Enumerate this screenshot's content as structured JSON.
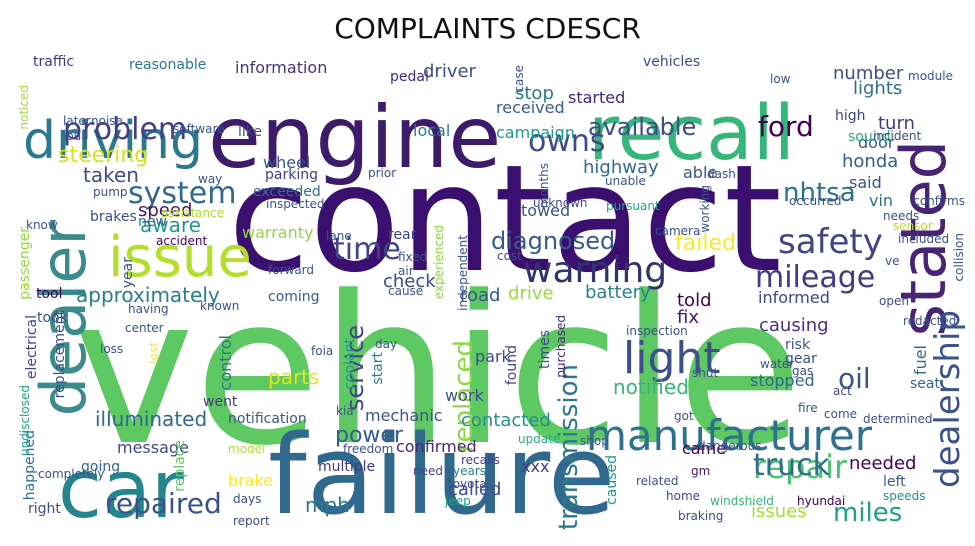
{
  "title": "COMPLAINTS CDESCR",
  "words": [
    {
      "text": "vehicle",
      "color": "#5ec962"
    },
    {
      "text": "contact",
      "color": "#3b0f70"
    },
    {
      "text": "failure",
      "color": "#31688e"
    },
    {
      "text": "engine",
      "color": "#3e1a6b"
    },
    {
      "text": "recall",
      "color": "#35b779"
    },
    {
      "text": "car",
      "color": "#25858e"
    },
    {
      "text": "dealer",
      "color": "#3b8a8c"
    },
    {
      "text": "driving",
      "color": "#2a788e"
    },
    {
      "text": "issue",
      "color": "#b5de2b"
    },
    {
      "text": "stated",
      "color": "#482475"
    },
    {
      "text": "dealership",
      "color": "#3b528b"
    },
    {
      "text": "manufacturer",
      "color": "#2c728e"
    },
    {
      "text": "warning",
      "color": "#30336e"
    },
    {
      "text": "light",
      "color": "#3c4f8a"
    },
    {
      "text": "transmission",
      "color": "#2a788e"
    },
    {
      "text": "replaced",
      "color": "#8fd744"
    },
    {
      "text": "safety",
      "color": "#414487"
    },
    {
      "text": "problem",
      "color": "#433e85"
    },
    {
      "text": "system",
      "color": "#31688e"
    },
    {
      "text": "time",
      "color": "#414487"
    },
    {
      "text": "mileage",
      "color": "#443983"
    },
    {
      "text": "repair",
      "color": "#4ac16d"
    },
    {
      "text": "truck",
      "color": "#2f6c8e"
    },
    {
      "text": "miles",
      "color": "#1fa188"
    },
    {
      "text": "repaired",
      "color": "#3b528b"
    },
    {
      "text": "service",
      "color": "#3f4788"
    },
    {
      "text": "oil",
      "color": "#39568c"
    },
    {
      "text": "owns",
      "color": "#3e4a89"
    },
    {
      "text": "ford",
      "color": "#440154"
    },
    {
      "text": "diagnosed",
      "color": "#38588c"
    },
    {
      "text": "failed",
      "color": "#fde725"
    },
    {
      "text": "available",
      "color": "#3e4c8a"
    },
    {
      "text": "nhtsa",
      "color": "#2c728e"
    },
    {
      "text": "steering",
      "color": "#d8e219"
    },
    {
      "text": "power",
      "color": "#365c8d"
    },
    {
      "text": "approximately",
      "color": "#287c8e"
    },
    {
      "text": "illuminated",
      "color": "#31688e"
    },
    {
      "text": "parts",
      "color": "#e5e419"
    },
    {
      "text": "speed",
      "color": "#481467"
    },
    {
      "text": "taken",
      "color": "#3e4c8a"
    },
    {
      "text": "aware",
      "color": "#1f9a8a"
    },
    {
      "text": "lights",
      "color": "#2e6f8e"
    },
    {
      "text": "number",
      "color": "#3d4d8a"
    },
    {
      "text": "turn",
      "color": "#453781"
    },
    {
      "text": "honda",
      "color": "#365d8d"
    },
    {
      "text": "said",
      "color": "#3b528b"
    },
    {
      "text": "vin",
      "color": "#2b748e"
    },
    {
      "text": "informed",
      "color": "#3e4989"
    },
    {
      "text": "causing",
      "color": "#46337f"
    },
    {
      "text": "told",
      "color": "#440154"
    },
    {
      "text": "fix",
      "color": "#481d6f"
    },
    {
      "text": "drive",
      "color": "#9bd93c"
    },
    {
      "text": "battery",
      "color": "#25838e"
    },
    {
      "text": "road",
      "color": "#3b528b"
    },
    {
      "text": "check",
      "color": "#404588"
    },
    {
      "text": "contacted",
      "color": "#21918c"
    },
    {
      "text": "notified",
      "color": "#35b779"
    },
    {
      "text": "needed",
      "color": "#440154"
    },
    {
      "text": "issues",
      "color": "#aadc32"
    },
    {
      "text": "stopped",
      "color": "#32658e"
    },
    {
      "text": "mechanic",
      "color": "#3b528b"
    },
    {
      "text": "warranty",
      "color": "#90d743"
    },
    {
      "text": "brake",
      "color": "#fde725"
    },
    {
      "text": "message",
      "color": "#3e4a89"
    },
    {
      "text": "mph",
      "color": "#2a788e"
    },
    {
      "text": "called",
      "color": "#3c4f8a"
    },
    {
      "text": "confirmed",
      "color": "#482878"
    },
    {
      "text": "xxx",
      "color": "#433e85"
    },
    {
      "text": "driver",
      "color": "#3e4c8a"
    },
    {
      "text": "stop",
      "color": "#2a788e"
    },
    {
      "text": "started",
      "color": "#482475"
    },
    {
      "text": "received",
      "color": "#365c8d"
    },
    {
      "text": "local",
      "color": "#27808e"
    },
    {
      "text": "campaign",
      "color": "#1f988b"
    },
    {
      "text": "highway",
      "color": "#2f6c8e"
    },
    {
      "text": "able",
      "color": "#3b528b"
    },
    {
      "text": "towed",
      "color": "#3b528b"
    },
    {
      "text": "information",
      "color": "#46337f"
    },
    {
      "text": "reasonable",
      "color": "#2a788e"
    },
    {
      "text": "vehicles",
      "color": "#3e4a89"
    },
    {
      "text": "traffic",
      "color": "#443983"
    },
    {
      "text": "pedal",
      "color": "#482878"
    },
    {
      "text": "door",
      "color": "#39568c"
    },
    {
      "text": "sound",
      "color": "#29af7f"
    },
    {
      "text": "high",
      "color": "#404588"
    },
    {
      "text": "like",
      "color": "#3e4c8a"
    },
    {
      "text": "wheel",
      "color": "#3b528b"
    },
    {
      "text": "exceeded",
      "color": "#2c728e"
    },
    {
      "text": "parking",
      "color": "#433e85"
    },
    {
      "text": "new",
      "color": "#31688e"
    },
    {
      "text": "rear",
      "color": "#414487"
    },
    {
      "text": "fuel",
      "color": "#2e6f8e"
    },
    {
      "text": "seat",
      "color": "#32658e"
    },
    {
      "text": "park",
      "color": "#3e4a89"
    },
    {
      "text": "work",
      "color": "#3b528b"
    },
    {
      "text": "went",
      "color": "#453781"
    },
    {
      "text": "control",
      "color": "#2a788e"
    },
    {
      "text": "coming",
      "color": "#365c8d"
    },
    {
      "text": "gear",
      "color": "#3e4c8a"
    },
    {
      "text": "risk",
      "color": "#3b528b"
    },
    {
      "text": "times",
      "color": "#3e4989"
    },
    {
      "text": "found",
      "color": "#3f4788"
    },
    {
      "text": "came",
      "color": "#440154"
    },
    {
      "text": "start",
      "color": "#27808e"
    },
    {
      "text": "coolant",
      "color": "#1f988b"
    },
    {
      "text": "passenger",
      "color": "#9bd93c"
    },
    {
      "text": "brakes",
      "color": "#3e4c8a"
    },
    {
      "text": "tool",
      "color": "#440154"
    },
    {
      "text": "took",
      "color": "#3b528b"
    },
    {
      "text": "year",
      "color": "#3c4f8a"
    },
    {
      "text": "electrical",
      "color": "#404588"
    },
    {
      "text": "replacement",
      "color": "#3b528b"
    },
    {
      "text": "happened",
      "color": "#2c728e"
    },
    {
      "text": "going",
      "color": "#32658e"
    },
    {
      "text": "right",
      "color": "#3e4a89"
    },
    {
      "text": "replace",
      "color": "#5ec962"
    },
    {
      "text": "undisclosed",
      "color": "#20a386"
    },
    {
      "text": "completely",
      "color": "#3b528b"
    },
    {
      "text": "days",
      "color": "#3e4c8a"
    },
    {
      "text": "report",
      "color": "#3d4d8a"
    },
    {
      "text": "model",
      "color": "#b5de2b"
    },
    {
      "text": "multiple",
      "color": "#453781"
    },
    {
      "text": "freedom",
      "color": "#3c4f8a"
    },
    {
      "text": "notification",
      "color": "#38588c"
    },
    {
      "text": "kia",
      "color": "#3b528b"
    },
    {
      "text": "dangerous",
      "color": "#3e4c8a"
    },
    {
      "text": "shop",
      "color": "#3b528b"
    },
    {
      "text": "update",
      "color": "#27ad81"
    },
    {
      "text": "recalls",
      "color": "#433e85"
    },
    {
      "text": "years",
      "color": "#27808e"
    },
    {
      "text": "need",
      "color": "#3e4a89"
    },
    {
      "text": "jeep",
      "color": "#20a386"
    },
    {
      "text": "toyota",
      "color": "#3e4a89"
    },
    {
      "text": "caused",
      "color": "#1f988b"
    },
    {
      "text": "related",
      "color": "#3b528b"
    },
    {
      "text": "gm",
      "color": "#481467"
    },
    {
      "text": "home",
      "color": "#3f4788"
    },
    {
      "text": "braking",
      "color": "#3e4c8a"
    },
    {
      "text": "windshield",
      "color": "#35b779"
    },
    {
      "text": "hyundai",
      "color": "#440154"
    },
    {
      "text": "speeds",
      "color": "#21918c"
    },
    {
      "text": "left",
      "color": "#365c8d"
    },
    {
      "text": "fire",
      "color": "#3b528b"
    },
    {
      "text": "come",
      "color": "#3b528b"
    },
    {
      "text": "act",
      "color": "#3e4c8a"
    },
    {
      "text": "determined",
      "color": "#3e4a89"
    },
    {
      "text": "redacted",
      "color": "#3b528b"
    },
    {
      "text": "open",
      "color": "#3e4c8a"
    },
    {
      "text": "water",
      "color": "#3b528b"
    },
    {
      "text": "gas",
      "color": "#3e4c8a"
    },
    {
      "text": "shut",
      "color": "#3b528b"
    },
    {
      "text": "got",
      "color": "#3b528b"
    },
    {
      "text": "inspection",
      "color": "#3b528b"
    },
    {
      "text": "purchased",
      "color": "#482878"
    },
    {
      "text": "pursuant",
      "color": "#20a386"
    },
    {
      "text": "unable",
      "color": "#3b528b"
    },
    {
      "text": "unknown",
      "color": "#3e4c8a"
    },
    {
      "text": "dash",
      "color": "#3b528b"
    },
    {
      "text": "incident",
      "color": "#3e4c8a"
    },
    {
      "text": "confirms",
      "color": "#3b528b"
    },
    {
      "text": "occurred",
      "color": "#3b528b"
    },
    {
      "text": "needs",
      "color": "#3e4c8a"
    },
    {
      "text": "sensor",
      "color": "#b5de2b"
    },
    {
      "text": "included",
      "color": "#3b528b"
    },
    {
      "text": "collision",
      "color": "#3b528b"
    },
    {
      "text": "ve",
      "color": "#3b528b"
    },
    {
      "text": "camera",
      "color": "#3b528b"
    },
    {
      "text": "cost",
      "color": "#3b528b"
    },
    {
      "text": "independent",
      "color": "#3b528b"
    },
    {
      "text": "experienced",
      "color": "#8fd744"
    },
    {
      "text": "fixed",
      "color": "#3b528b"
    },
    {
      "text": "air",
      "color": "#3b528b"
    },
    {
      "text": "cause",
      "color": "#3b528b"
    },
    {
      "text": "forward",
      "color": "#3b528b"
    },
    {
      "text": "lane",
      "color": "#3b528b"
    },
    {
      "text": "accident",
      "color": "#440154"
    },
    {
      "text": "assistance",
      "color": "#aadc32"
    },
    {
      "text": "inspected",
      "color": "#3b528b"
    },
    {
      "text": "prior",
      "color": "#3b528b"
    },
    {
      "text": "pump",
      "color": "#3b528b"
    },
    {
      "text": "way",
      "color": "#3b528b"
    },
    {
      "text": "software",
      "color": "#3b528b"
    },
    {
      "text": "noise",
      "color": "#3b528b"
    },
    {
      "text": "later",
      "color": "#3b528b"
    },
    {
      "text": "pull",
      "color": "#3b528b"
    },
    {
      "text": "noticed",
      "color": "#aadc32"
    },
    {
      "text": "know",
      "color": "#3b528b"
    },
    {
      "text": "having",
      "color": "#3b528b"
    },
    {
      "text": "center",
      "color": "#3b528b"
    },
    {
      "text": "known",
      "color": "#3b528b"
    },
    {
      "text": "loss",
      "color": "#3b528b"
    },
    {
      "text": "lost",
      "color": "#fde725"
    },
    {
      "text": "foia",
      "color": "#3b528b"
    },
    {
      "text": "day",
      "color": "#3b528b"
    },
    {
      "text": "working",
      "color": "#3b528b"
    },
    {
      "text": "months",
      "color": "#3b528b"
    },
    {
      "text": "case",
      "color": "#3b528b"
    },
    {
      "text": "low",
      "color": "#3b528b"
    },
    {
      "text": "module",
      "color": "#3b528b"
    }
  ]
}
